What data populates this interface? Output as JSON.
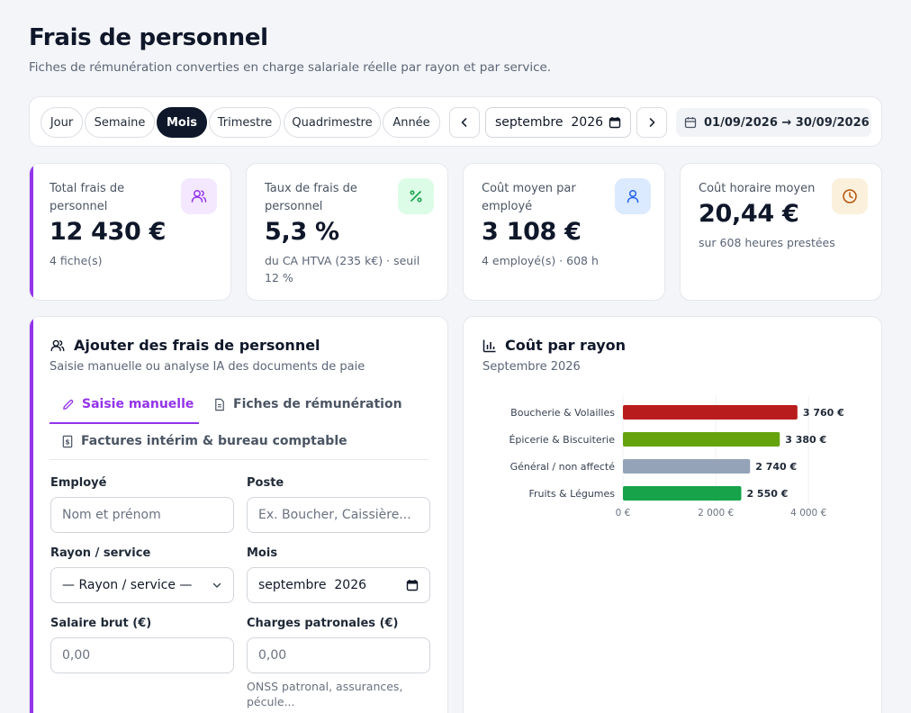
{
  "page": {
    "title": "Frais de personnel",
    "subtitle": "Fiches de rémunération converties en charge salariale réelle par rayon et par service."
  },
  "period": {
    "options": [
      "Jour",
      "Semaine",
      "Mois",
      "Trimestre",
      "Quadrimestre",
      "Année"
    ],
    "selected": "Mois",
    "month_value": "septembre  2026",
    "range": "01/09/2026 → 30/09/2026"
  },
  "kpis": [
    {
      "label": "Total frais de personnel",
      "value": "12 430 €",
      "sub": "4 fiche(s)",
      "icon": "users-icon",
      "color": "#9333ea"
    },
    {
      "label": "Taux de frais de personnel",
      "value": "5,3 %",
      "sub": "du CA HTVA (235 k€) · seuil 12 %",
      "icon": "percent-icon",
      "color": "#16a34a"
    },
    {
      "label": "Coût moyen par employé",
      "value": "3 108 €",
      "sub": "4 employé(s) · 608 h",
      "icon": "user-icon",
      "color": "#2563eb"
    },
    {
      "label": "Coût horaire moyen",
      "value": "20,44 €",
      "sub": "sur 608 heures prestées",
      "icon": "clock-icon",
      "color": "#b45309"
    }
  ],
  "add_form": {
    "title": "Ajouter des frais de personnel",
    "subtitle": "Saisie manuelle ou analyse IA des documents de paie",
    "tabs": [
      {
        "label": "Saisie manuelle",
        "icon": "pencil-icon"
      },
      {
        "label": "Fiches de rémunération",
        "icon": "document-icon"
      },
      {
        "label": "Factures intérim & bureau comptable",
        "icon": "invoice-icon"
      }
    ],
    "active_tab": "Saisie manuelle",
    "fields": {
      "employee": {
        "label": "Employé",
        "placeholder": "Nom et prénom"
      },
      "position": {
        "label": "Poste",
        "placeholder": "Ex. Boucher, Caissière..."
      },
      "department": {
        "label": "Rayon / service",
        "value": "— Rayon / service —"
      },
      "month": {
        "label": "Mois",
        "value": "septembre  2026"
      },
      "gross_salary": {
        "label": "Salaire brut (€)",
        "placeholder": "0,00"
      },
      "employer_charges": {
        "label": "Charges patronales (€)",
        "placeholder": "0,00",
        "hint": "ONSS patronal, assurances, pécule..."
      }
    }
  },
  "cost_panel": {
    "title": "Coût par rayon",
    "subtitle": "Septembre 2026"
  },
  "chart_data": {
    "type": "bar",
    "orientation": "horizontal",
    "categories": [
      "Boucherie & Volailles",
      "Épicerie & Biscuiterie",
      "Général / non affecté",
      "Fruits & Légumes"
    ],
    "values": [
      3760,
      3380,
      2740,
      2550
    ],
    "value_labels": [
      "3 760 €",
      "3 380 €",
      "2 740 €",
      "2 550 €"
    ],
    "colors": [
      "#b91c1c",
      "#65a30d",
      "#94a3b8",
      "#16a34a"
    ],
    "ticks": [
      0,
      2000,
      4000
    ],
    "tick_labels": [
      "0 €",
      "2 000 €",
      "4 000 €"
    ],
    "xlim": [
      0,
      4500
    ],
    "grid": true
  }
}
